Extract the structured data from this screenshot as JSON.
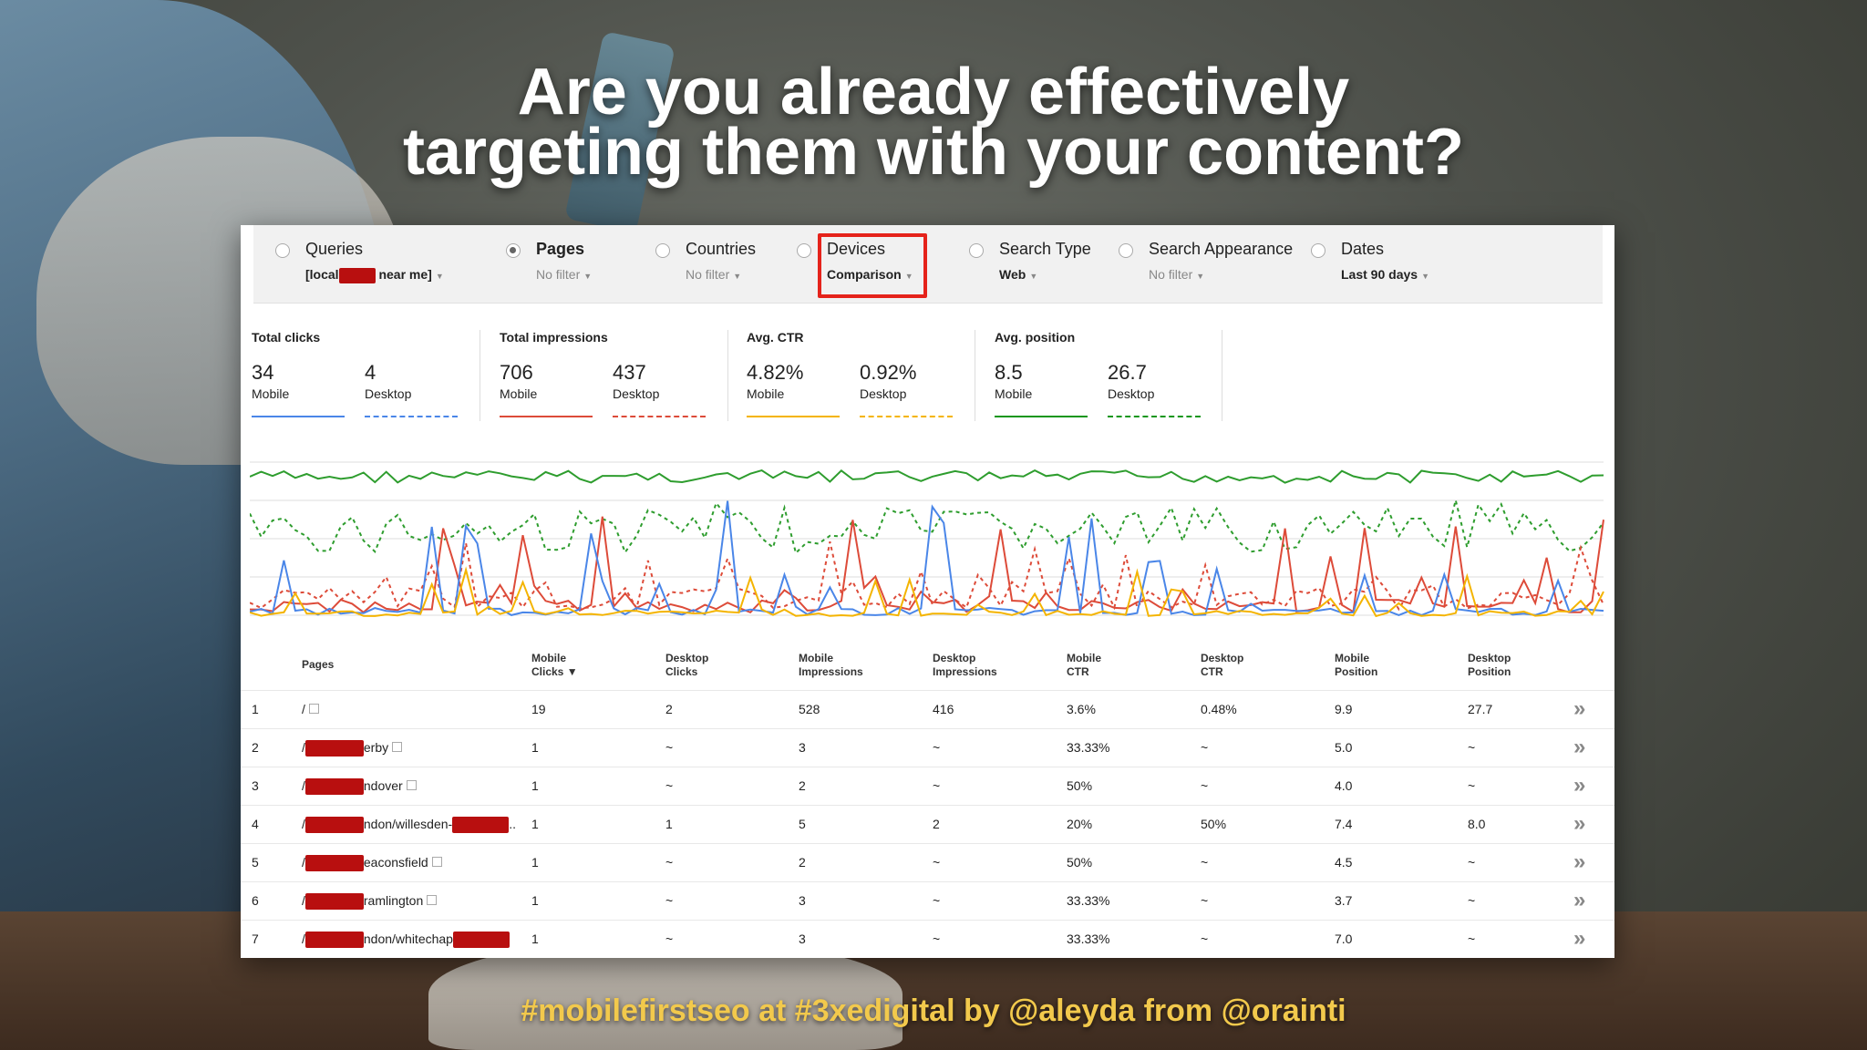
{
  "slide": {
    "headline_line1": "Are you already effectively",
    "headline_line2": "targeting them with your content?",
    "footer": "#mobilefirstseo at #3xedigital by @aleyda from @orainti"
  },
  "filters": {
    "queries": {
      "label": "Queries",
      "sub_prefix": "[local",
      "sub_suffix": "near me]"
    },
    "pages": {
      "label": "Pages",
      "sub": "No filter"
    },
    "countries": {
      "label": "Countries",
      "sub": "No filter"
    },
    "devices": {
      "label": "Devices",
      "sub": "Comparison"
    },
    "search_type": {
      "label": "Search Type",
      "sub": "Web"
    },
    "search_appearance": {
      "label": "Search Appearance",
      "sub": "No filter"
    },
    "dates": {
      "label": "Dates",
      "sub": "Last 90 days"
    }
  },
  "metrics": [
    {
      "title": "Total clicks",
      "mobile": "34",
      "desktop": "4",
      "mobile_label": "Mobile",
      "desktop_label": "Desktop",
      "color": "#4a86e8"
    },
    {
      "title": "Total impressions",
      "mobile": "706",
      "desktop": "437",
      "mobile_label": "Mobile",
      "desktop_label": "Desktop",
      "color": "#dd4b39"
    },
    {
      "title": "Avg. CTR",
      "mobile": "4.82%",
      "desktop": "0.92%",
      "mobile_label": "Mobile",
      "desktop_label": "Desktop",
      "color": "#f4b400"
    },
    {
      "title": "Avg. position",
      "mobile": "8.5",
      "desktop": "26.7",
      "mobile_label": "Mobile",
      "desktop_label": "Desktop",
      "color": "#109618"
    }
  ],
  "chart_colors": {
    "clicks": "#4a86e8",
    "impressions": "#dd4b39",
    "ctr": "#f4b400",
    "position": "#2e9d2e"
  },
  "table": {
    "headers": {
      "pages": "Pages",
      "mobile_clicks_1": "Mobile",
      "mobile_clicks_2": "Clicks ▼",
      "desktop_clicks_1": "Desktop",
      "desktop_clicks_2": "Clicks",
      "mobile_impr_1": "Mobile",
      "mobile_impr_2": "Impressions",
      "desktop_impr_1": "Desktop",
      "desktop_impr_2": "Impressions",
      "mobile_ctr_1": "Mobile",
      "mobile_ctr_2": "CTR",
      "desktop_ctr_1": "Desktop",
      "desktop_ctr_2": "CTR",
      "mobile_pos_1": "Mobile",
      "mobile_pos_2": "Position",
      "desktop_pos_1": "Desktop",
      "desktop_pos_2": "Position"
    },
    "rows": [
      {
        "n": "1",
        "page": "/",
        "page_suffix": "",
        "mc": "19",
        "dc": "2",
        "mi": "528",
        "di": "416",
        "mctr": "3.6%",
        "dctr": "0.48%",
        "mp": "9.9",
        "dp": "27.7"
      },
      {
        "n": "2",
        "page": "/",
        "page_suffix": "erby",
        "mc": "1",
        "dc": "~",
        "mi": "3",
        "di": "~",
        "mctr": "33.33%",
        "dctr": "~",
        "mp": "5.0",
        "dp": "~"
      },
      {
        "n": "3",
        "page": "/",
        "page_suffix": "ndover",
        "mc": "1",
        "dc": "~",
        "mi": "2",
        "di": "~",
        "mctr": "50%",
        "dctr": "~",
        "mp": "4.0",
        "dp": "~"
      },
      {
        "n": "4",
        "page": "/",
        "page_suffix": "ndon/willesden-",
        "mc": "1",
        "dc": "1",
        "mi": "5",
        "di": "2",
        "mctr": "20%",
        "dctr": "50%",
        "mp": "7.4",
        "dp": "8.0"
      },
      {
        "n": "5",
        "page": "/",
        "page_suffix": "eaconsfield",
        "mc": "1",
        "dc": "~",
        "mi": "2",
        "di": "~",
        "mctr": "50%",
        "dctr": "~",
        "mp": "4.5",
        "dp": "~"
      },
      {
        "n": "6",
        "page": "/",
        "page_suffix": "ramlington",
        "mc": "1",
        "dc": "~",
        "mi": "3",
        "di": "~",
        "mctr": "33.33%",
        "dctr": "~",
        "mp": "3.7",
        "dp": "~"
      },
      {
        "n": "7",
        "page": "/",
        "page_suffix": "ndon/whitechap",
        "mc": "1",
        "dc": "~",
        "mi": "3",
        "di": "~",
        "mctr": "33.33%",
        "dctr": "~",
        "mp": "7.0",
        "dp": "~"
      }
    ]
  }
}
